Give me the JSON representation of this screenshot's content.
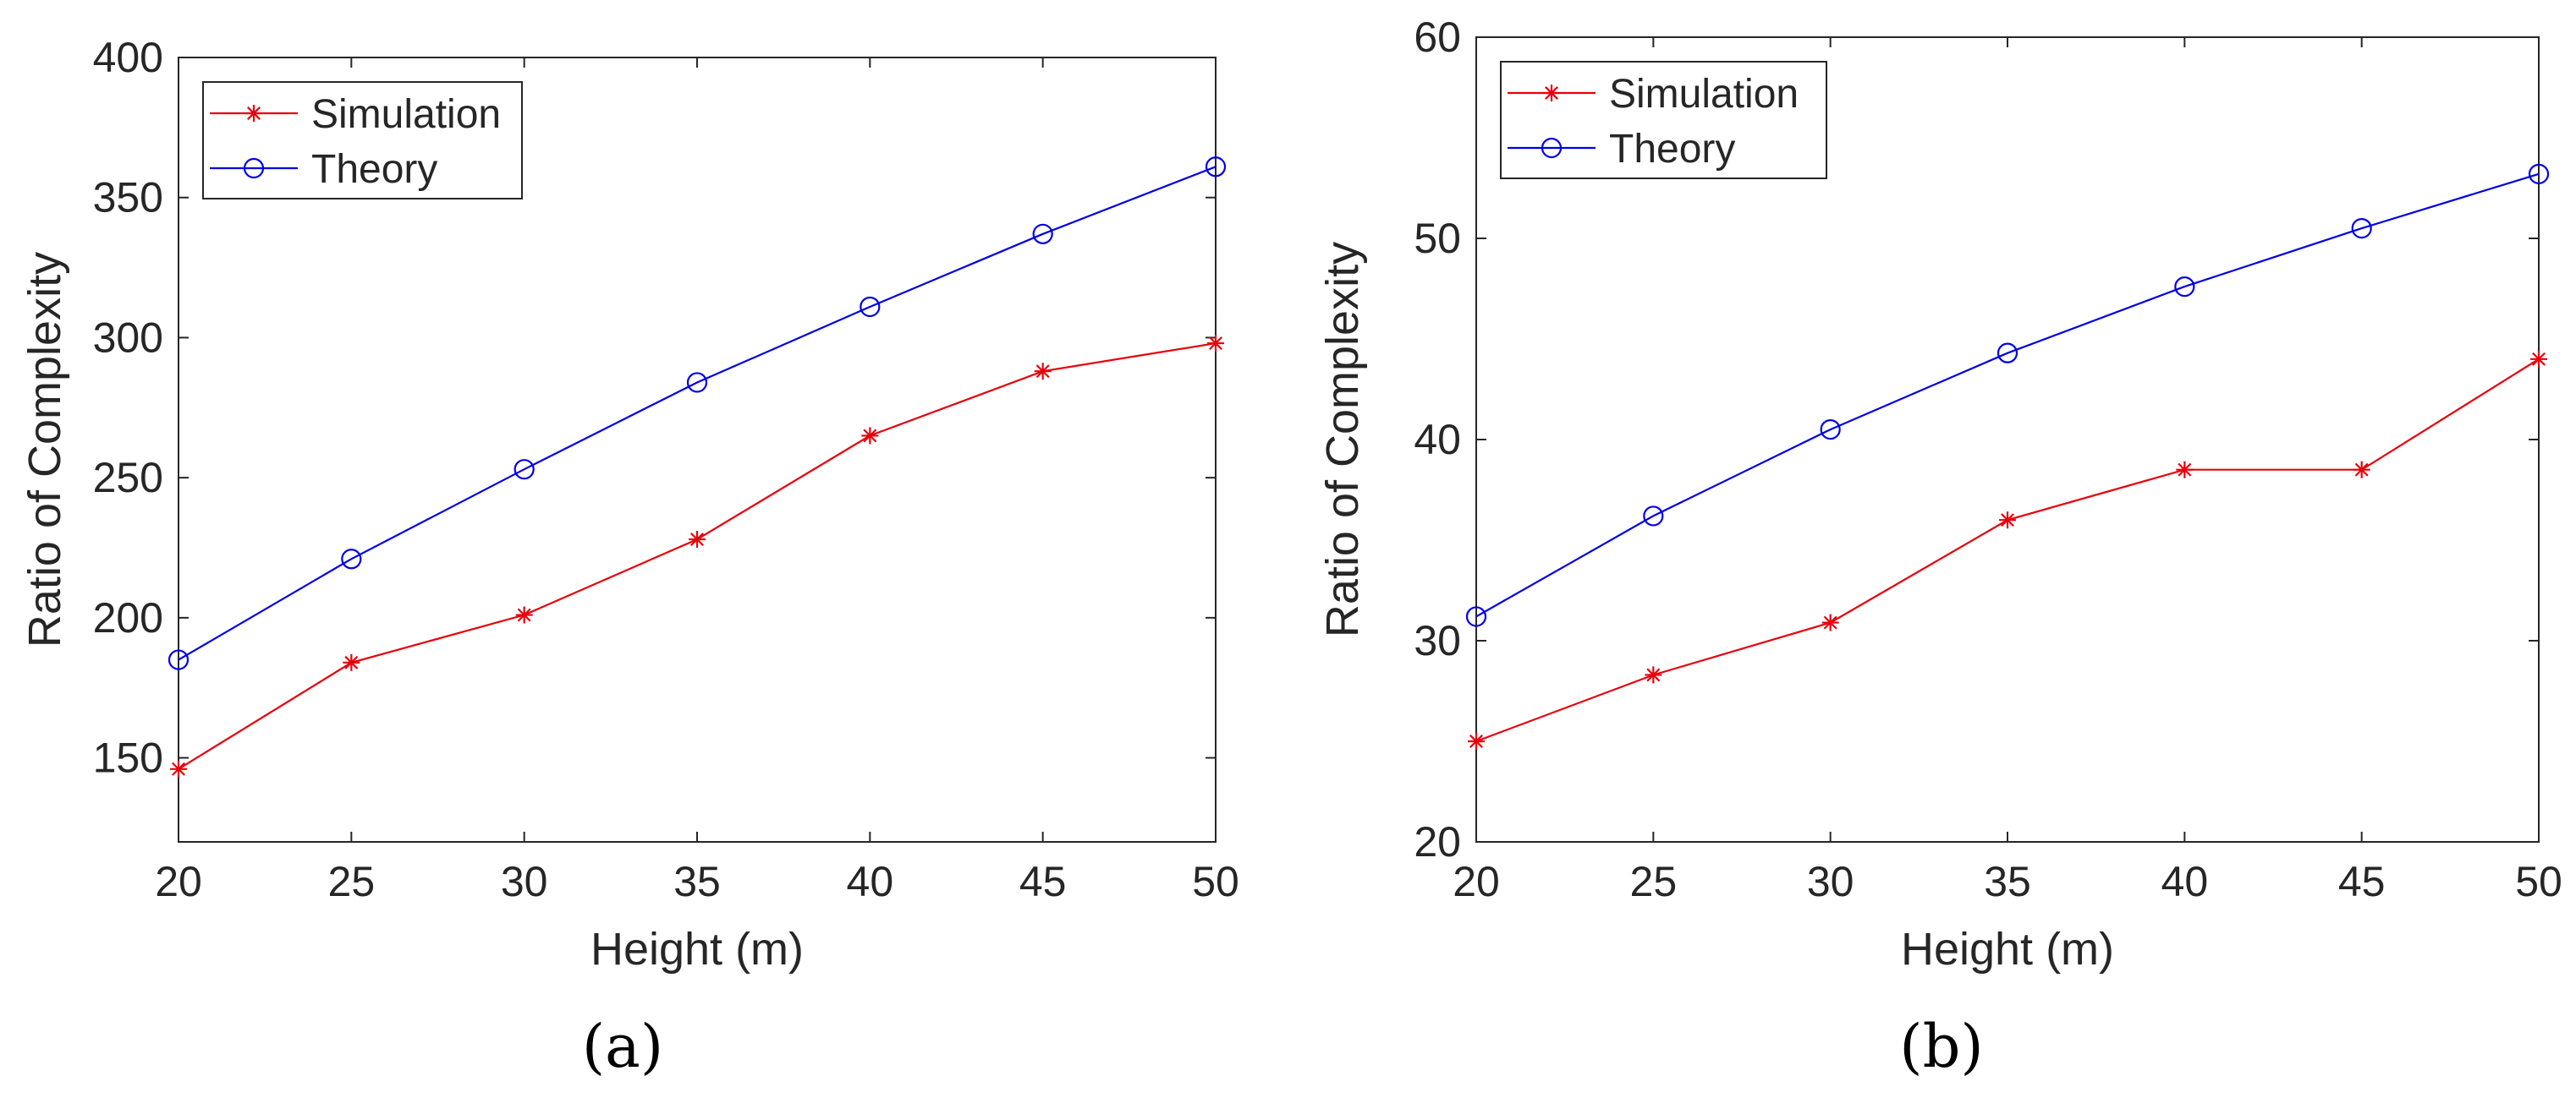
{
  "colors": {
    "simulation": "#e8000b",
    "theory": "#0000e6",
    "axis": "#262626"
  },
  "chart_data": [
    {
      "type": "line",
      "caption": "(a)",
      "caption_letter": "a",
      "xlabel": "Height (m)",
      "ylabel": "Ratio of Complexity",
      "x": [
        20,
        25,
        30,
        35,
        40,
        45,
        50
      ],
      "xlim": [
        20,
        50
      ],
      "ylim": [
        120,
        400
      ],
      "xticks": [
        20,
        25,
        30,
        35,
        40,
        45,
        50
      ],
      "yticks": [
        150,
        200,
        250,
        300,
        350,
        400
      ],
      "legend_position": "top-left",
      "grid": false,
      "series": [
        {
          "name": "Simulation",
          "marker": "asterisk",
          "color": "#e8000b",
          "values": [
            146,
            184,
            201,
            228,
            265,
            288,
            298
          ]
        },
        {
          "name": "Theory",
          "marker": "circle",
          "color": "#0000e6",
          "values": [
            185,
            221,
            253,
            284,
            311,
            337,
            361
          ]
        }
      ]
    },
    {
      "type": "line",
      "caption": "(b)",
      "caption_letter": "b",
      "xlabel": "Height (m)",
      "ylabel": "Ratio of Complexity",
      "x": [
        20,
        25,
        30,
        35,
        40,
        45,
        50
      ],
      "xlim": [
        20,
        50
      ],
      "ylim": [
        20,
        60
      ],
      "xticks": [
        20,
        25,
        30,
        35,
        40,
        45,
        50
      ],
      "yticks": [
        20,
        30,
        40,
        50,
        60
      ],
      "legend_position": "top-left",
      "grid": false,
      "series": [
        {
          "name": "Simulation",
          "marker": "asterisk",
          "color": "#e8000b",
          "values": [
            25.0,
            28.3,
            30.9,
            36.0,
            38.5,
            38.5,
            44.0
          ]
        },
        {
          "name": "Theory",
          "marker": "circle",
          "color": "#0000e6",
          "values": [
            31.2,
            36.2,
            40.5,
            44.3,
            47.6,
            50.5,
            53.2
          ]
        }
      ]
    }
  ]
}
